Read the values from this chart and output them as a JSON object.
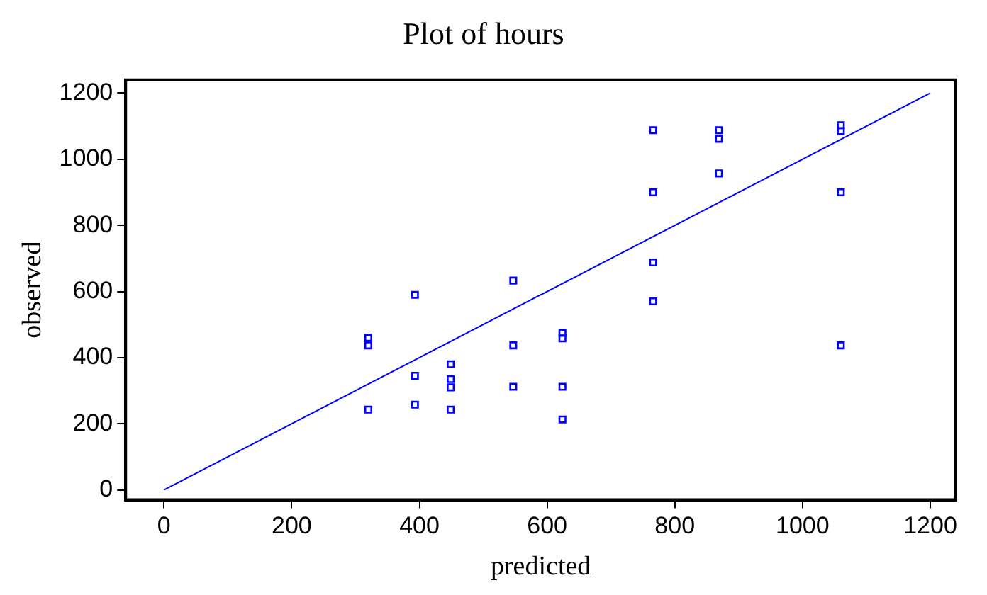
{
  "chart_data": {
    "type": "scatter",
    "title": "Plot of hours",
    "xlabel": "predicted",
    "ylabel": "observed",
    "xlim": [
      -60,
      1240
    ],
    "ylim": [
      -30,
      1240
    ],
    "xticks": [
      0,
      200,
      400,
      600,
      800,
      1000,
      1200
    ],
    "yticks": [
      0,
      200,
      400,
      600,
      800,
      1000,
      1200
    ],
    "grid": false,
    "legend": false,
    "marker": "square",
    "series": [
      {
        "type": "scatter",
        "color": "#0000ff",
        "x": [
          320,
          320,
          320,
          393,
          393,
          393,
          449,
          449,
          449,
          449,
          547,
          547,
          547,
          624,
          624,
          624,
          624,
          766,
          766,
          766,
          766,
          869,
          869,
          869,
          1060,
          1060,
          1060,
          1060
        ],
        "values": [
          460,
          437,
          243,
          590,
          345,
          258,
          380,
          335,
          310,
          243,
          633,
          437,
          312,
          475,
          458,
          312,
          213,
          1088,
          900,
          688,
          570,
          1088,
          1062,
          957,
          1103,
          1085,
          900,
          437
        ]
      },
      {
        "type": "line",
        "color": "#0000ff",
        "x": [
          0,
          1200
        ],
        "values": [
          0,
          1200
        ],
        "marker": "none"
      }
    ]
  }
}
